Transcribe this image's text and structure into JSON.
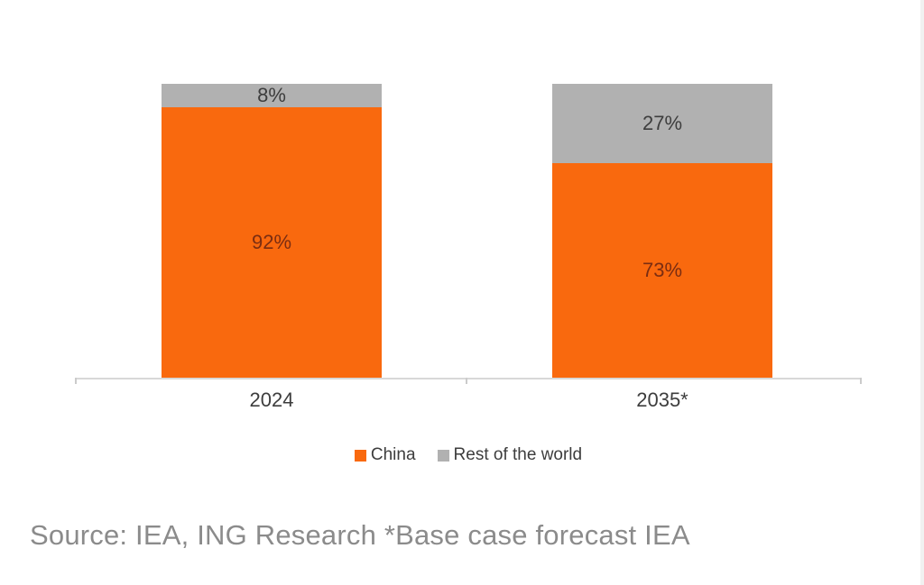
{
  "chart_data": {
    "type": "bar",
    "variant": "100%-stacked-column",
    "categories": [
      "2024",
      "2035*"
    ],
    "series": [
      {
        "name": "China",
        "values": [
          92,
          73
        ],
        "color": "#F9690E",
        "label_color": "#7A2D12"
      },
      {
        "name": "Rest of the world",
        "values": [
          8,
          27
        ],
        "color": "#B1B1B1",
        "label_color": "#3D3D3D"
      }
    ],
    "value_labels": [
      [
        "92%",
        "8%"
      ],
      [
        "73%",
        "27%"
      ]
    ],
    "value_suffix": "%",
    "ylim": [
      0,
      100
    ],
    "grid": false,
    "legend_position": "bottom-center",
    "axis_color": "#D8D8D8"
  },
  "footer": {
    "source_note": "Source: IEA, ING Research *Base case forecast IEA"
  }
}
